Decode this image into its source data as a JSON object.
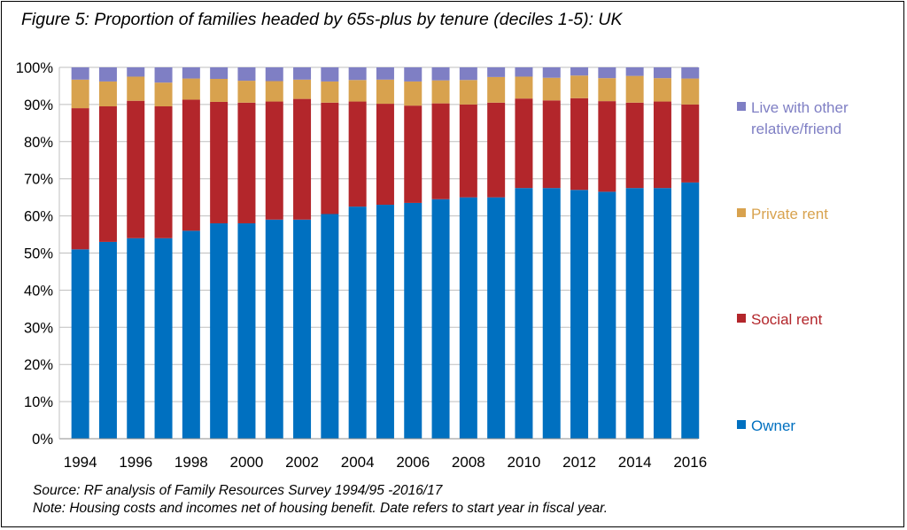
{
  "chart_data": {
    "type": "bar",
    "stacked": true,
    "title": "Figure 5: Proportion of families headed by 65s-plus by tenure (deciles 1-5): UK",
    "categories": [
      "1994",
      "1995",
      "1996",
      "1997",
      "1998",
      "1999",
      "2000",
      "2001",
      "2002",
      "2003",
      "2004",
      "2005",
      "2006",
      "2007",
      "2008",
      "2009",
      "2010",
      "2011",
      "2012",
      "2013",
      "2014",
      "2015",
      "2016"
    ],
    "x_tick_labels": [
      "1994",
      "1996",
      "1998",
      "2000",
      "2002",
      "2004",
      "2006",
      "2008",
      "2010",
      "2012",
      "2014",
      "2016"
    ],
    "y_tick_labels": [
      "0%",
      "10%",
      "20%",
      "30%",
      "40%",
      "50%",
      "60%",
      "70%",
      "80%",
      "90%",
      "100%"
    ],
    "ylim": [
      0,
      100
    ],
    "grid": "horizontal",
    "legend_position": "right",
    "series": [
      {
        "name": "Owner",
        "color": "#0070C0",
        "values": [
          51,
          53,
          54,
          54,
          56,
          58,
          58,
          59,
          59,
          60.5,
          62.5,
          63,
          63.5,
          64.5,
          65,
          65,
          67.5,
          67.5,
          67,
          66.5,
          67.5,
          67.5,
          69
        ]
      },
      {
        "name": "Social rent",
        "color": "#B3262B",
        "values": [
          38,
          36.5,
          37,
          35.5,
          35.3,
          32.7,
          32.5,
          31.8,
          32.5,
          30,
          28.3,
          27.2,
          26.2,
          25.8,
          25,
          25.5,
          24.1,
          23.6,
          24.7,
          24.4,
          23,
          23.3,
          21
        ]
      },
      {
        "name": "Private rent",
        "color": "#D8A24E",
        "values": [
          7.7,
          6.7,
          6.5,
          6.4,
          5.7,
          6.2,
          5.9,
          5.5,
          5.2,
          5.7,
          5.8,
          6.5,
          6.5,
          6.2,
          6.6,
          6.9,
          5.9,
          6.1,
          6.1,
          6.2,
          7.2,
          6.3,
          7
        ]
      },
      {
        "name": "Live with other relative/friend",
        "color": "#7F7FC4",
        "values": [
          3.3,
          3.8,
          2.5,
          4.1,
          3,
          3.1,
          3.6,
          3.7,
          3.3,
          3.8,
          3.4,
          3.3,
          3.8,
          3.5,
          3.4,
          2.6,
          2.5,
          2.8,
          2.2,
          2.9,
          2.3,
          2.9,
          3
        ]
      }
    ]
  },
  "legend": {
    "items": [
      {
        "line1": "Live with other",
        "line2": "relative/friend",
        "color": "#7F7FC4"
      },
      {
        "line1": "Private rent",
        "line2": "",
        "color": "#D8A24E"
      },
      {
        "line1": "Social rent",
        "line2": "",
        "color": "#B3262B"
      },
      {
        "line1": "Owner",
        "line2": "",
        "color": "#0070C0"
      }
    ]
  },
  "notes": {
    "source": "Source: RF analysis of Family Resources Survey 1994/95 -2016/17",
    "note": "Note: Housing costs and incomes net of housing benefit. Date refers to start year in fiscal year."
  }
}
